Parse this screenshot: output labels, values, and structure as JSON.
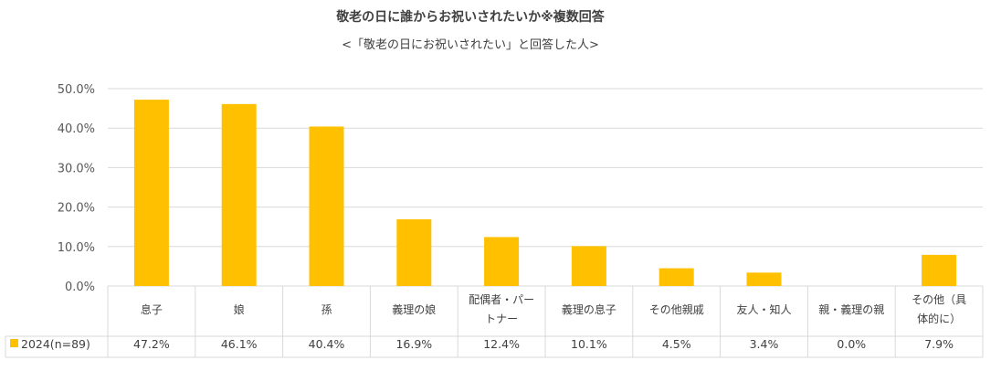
{
  "chart_data": {
    "type": "bar",
    "title": "敬老の日に誰からお祝いされたいか※複数回答",
    "subtitle": "<「敬老の日にお祝いされたい」と回答した人>",
    "categories": [
      [
        "息子"
      ],
      [
        "娘"
      ],
      [
        "孫"
      ],
      [
        "義理の娘"
      ],
      [
        "配偶者・パー",
        "トナー"
      ],
      [
        "義理の息子"
      ],
      [
        "その他親戚"
      ],
      [
        "友人・知人"
      ],
      [
        "親・義理の親"
      ],
      [
        "その他（具",
        "体的に）"
      ]
    ],
    "series": [
      {
        "name": "2024(n=89)",
        "values": [
          47.2,
          46.1,
          40.4,
          16.9,
          12.4,
          10.1,
          4.5,
          3.4,
          0.0,
          7.9
        ],
        "labels": [
          "47.2%",
          "46.1%",
          "40.4%",
          "16.9%",
          "12.4%",
          "10.1%",
          "4.5%",
          "3.4%",
          "0.0%",
          "7.9%"
        ]
      }
    ],
    "ylim": [
      0,
      50
    ],
    "yticks": [
      0,
      10,
      20,
      30,
      40,
      50
    ],
    "ytick_labels": [
      "0.0%",
      "10.0%",
      "20.0%",
      "30.0%",
      "40.0%",
      "50.0%"
    ],
    "grid": true,
    "legend": "data-table",
    "colors": {
      "bar": "#FFC000",
      "grid": "#D9D9D9"
    }
  }
}
